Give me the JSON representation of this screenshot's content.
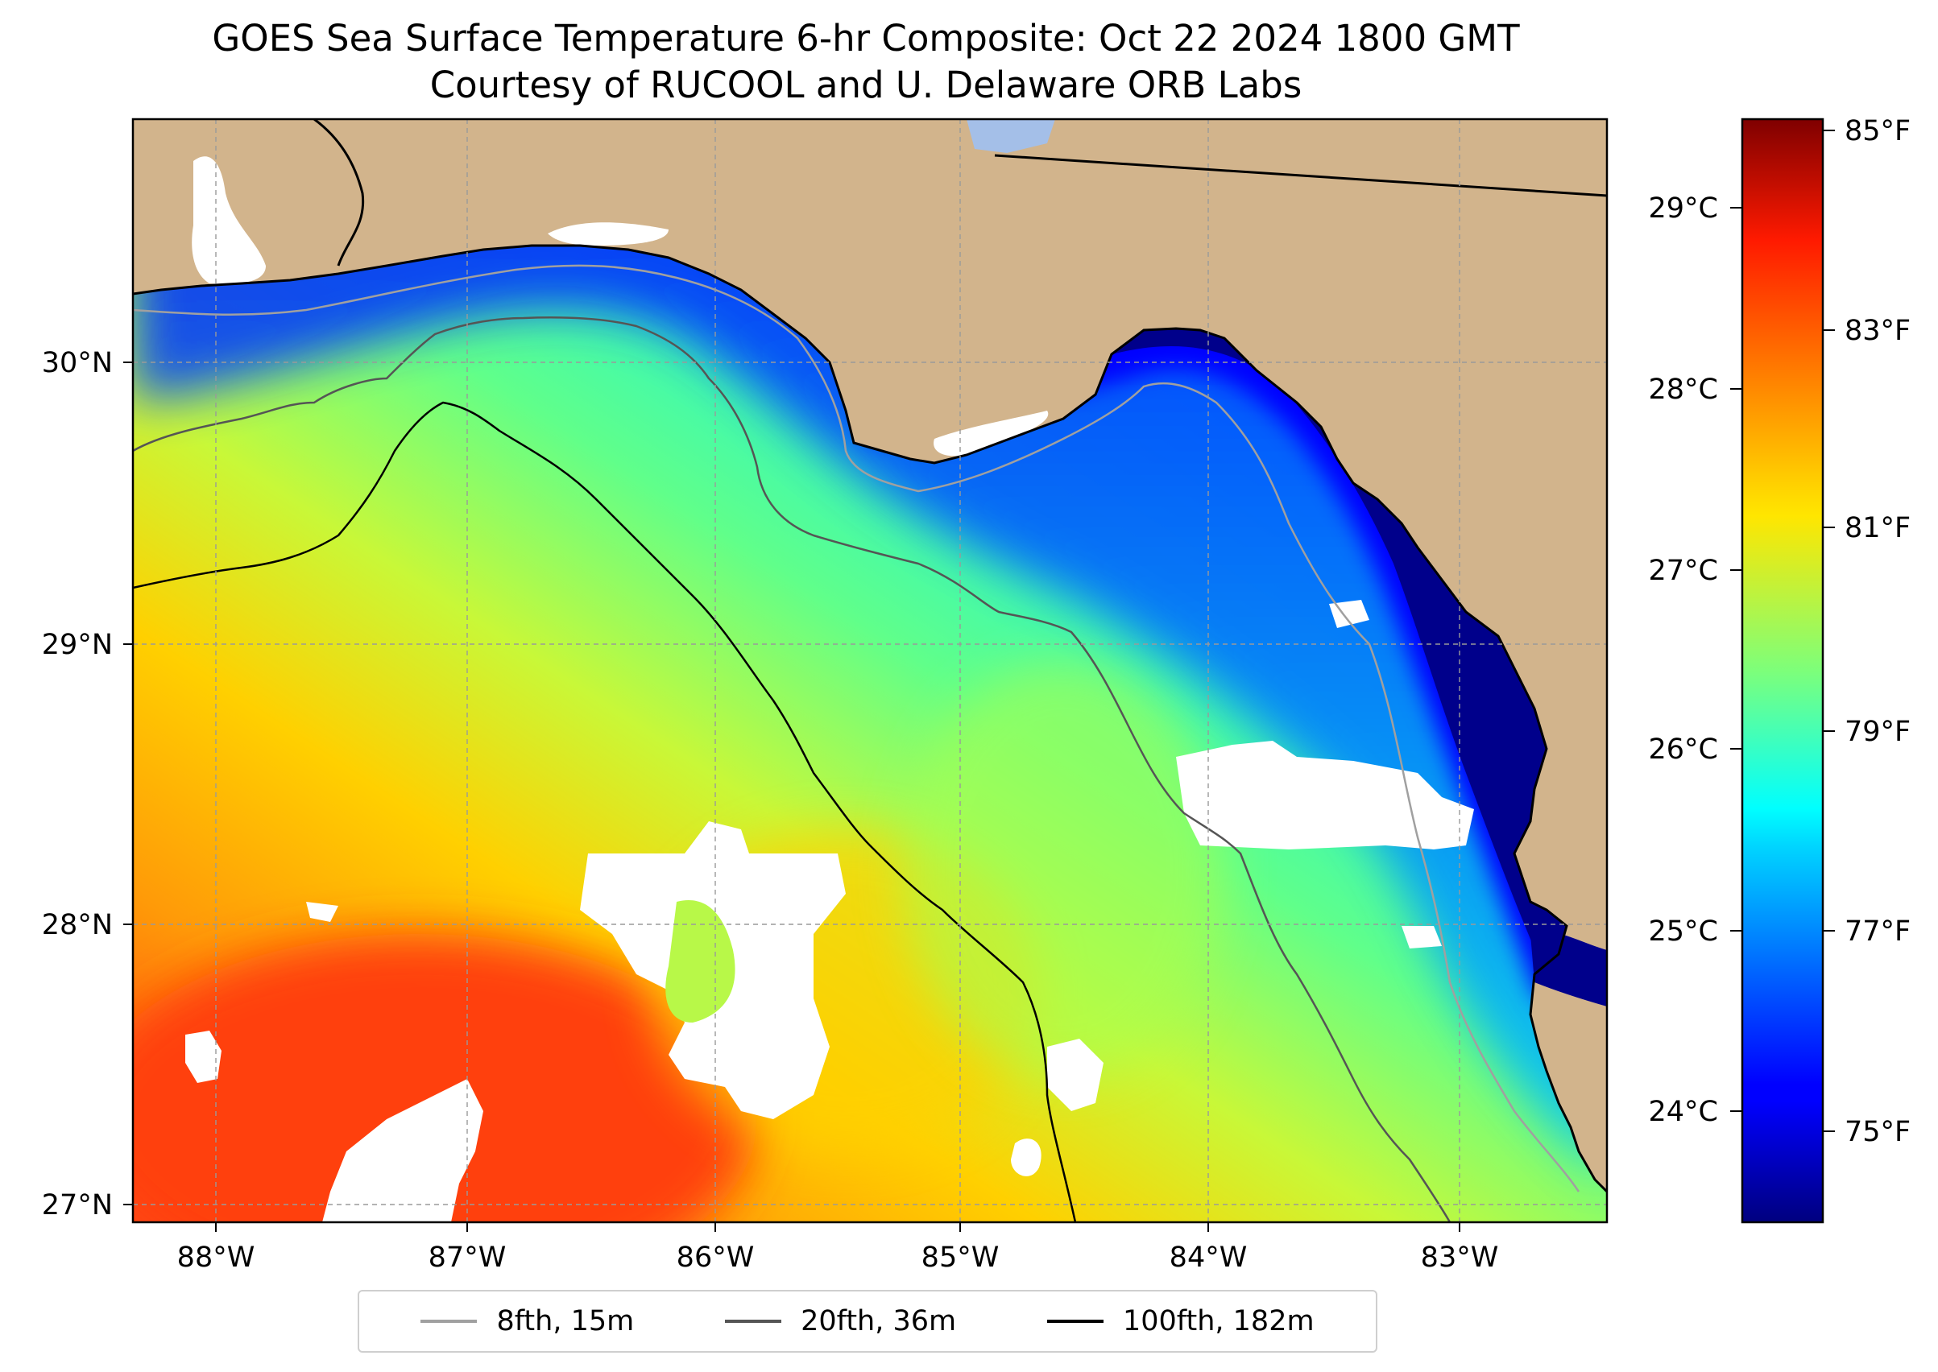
{
  "title": "GOES Sea Surface Temperature 6-hr Composite: Oct 22 2024 1800 GMT",
  "subtitle": "Courtesy of RUCOOL and U. Delaware ORB Labs",
  "map": {
    "lat_ticks": [
      "30°N",
      "29°N",
      "28°N",
      "27°N"
    ],
    "lon_ticks": [
      "88°W",
      "87°W",
      "86°W",
      "85°W",
      "84°W",
      "83°W"
    ],
    "extent": {
      "lon_min": -88.33,
      "lon_max": -82.4,
      "lat_min": 26.93,
      "lat_max": 30.85
    },
    "land_color": "#d2b48c",
    "cloud_color": "#ffffff"
  },
  "colorbar": {
    "celsius_ticks": [
      "29°C",
      "28°C",
      "27°C",
      "26°C",
      "25°C",
      "24°C"
    ],
    "fahrenheit_ticks": [
      "85°F",
      "83°F",
      "81°F",
      "79°F",
      "77°F",
      "75°F"
    ],
    "range_f": [
      74.3,
      85.2
    ],
    "colormap": "jet"
  },
  "legend": {
    "items": [
      {
        "label": "8fth, 15m",
        "color": "#a0a0a0"
      },
      {
        "label": "20fth, 36m",
        "color": "#555555"
      },
      {
        "label": "100fth, 182m",
        "color": "#000000"
      }
    ]
  }
}
